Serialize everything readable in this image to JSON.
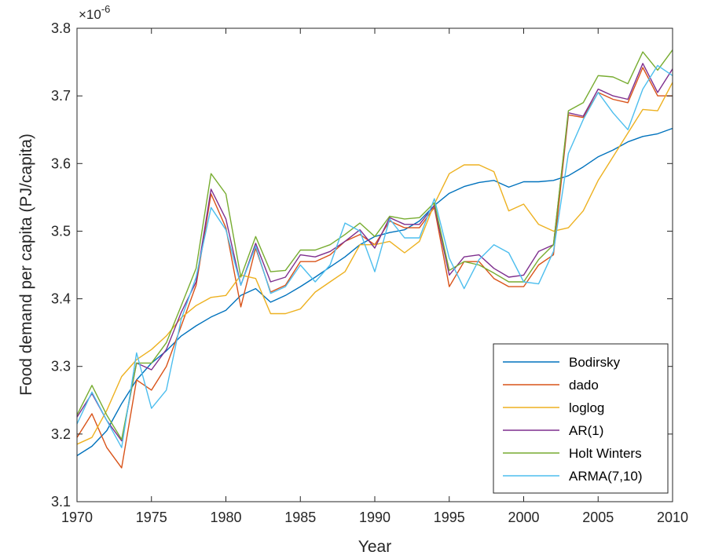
{
  "chart_data": {
    "type": "line",
    "title": "",
    "xlabel": "Year",
    "ylabel": "Food demand per capita (PJ/capita)",
    "y_multiplier": "×10",
    "y_multiplier_exp": "-6",
    "xlim": [
      1970,
      2010
    ],
    "ylim": [
      3.1,
      3.8
    ],
    "xticks": [
      "1970",
      "1975",
      "1980",
      "1985",
      "1990",
      "1995",
      "2000",
      "2005",
      "2010"
    ],
    "yticks": [
      "3.1",
      "3.2",
      "3.3",
      "3.4",
      "3.5",
      "3.6",
      "3.7",
      "3.8"
    ],
    "grid": false,
    "legend_position": "bottom-right",
    "x": [
      1970,
      1971,
      1972,
      1973,
      1974,
      1975,
      1976,
      1977,
      1978,
      1979,
      1980,
      1981,
      1982,
      1983,
      1984,
      1985,
      1986,
      1987,
      1988,
      1989,
      1990,
      1991,
      1992,
      1993,
      1994,
      1995,
      1996,
      1997,
      1998,
      1999,
      2000,
      2001,
      2002,
      2003,
      2004,
      2005,
      2006,
      2007,
      2008,
      2009,
      2010
    ],
    "series": [
      {
        "name": "Bodirsky",
        "color": "#0072BD",
        "values": [
          3.168,
          3.182,
          3.205,
          3.245,
          3.28,
          3.305,
          3.323,
          3.345,
          3.36,
          3.373,
          3.383,
          3.405,
          3.415,
          3.395,
          3.405,
          3.418,
          3.432,
          3.447,
          3.462,
          3.48,
          3.492,
          3.498,
          3.502,
          3.515,
          3.538,
          3.556,
          3.566,
          3.572,
          3.575,
          3.565,
          3.573,
          3.573,
          3.575,
          3.582,
          3.595,
          3.61,
          3.62,
          3.632,
          3.64,
          3.644,
          3.652
        ]
      },
      {
        "name": "dado",
        "color": "#D95319",
        "values": [
          3.195,
          3.23,
          3.18,
          3.15,
          3.28,
          3.265,
          3.3,
          3.36,
          3.42,
          3.555,
          3.505,
          3.388,
          3.475,
          3.41,
          3.42,
          3.455,
          3.455,
          3.465,
          3.485,
          3.495,
          3.48,
          3.515,
          3.505,
          3.505,
          3.535,
          3.418,
          3.455,
          3.455,
          3.43,
          3.418,
          3.418,
          3.45,
          3.465,
          3.672,
          3.668,
          3.705,
          3.695,
          3.69,
          3.742,
          3.7,
          3.7
        ]
      },
      {
        "name": "loglog",
        "color": "#EDB120",
        "values": [
          3.185,
          3.195,
          3.235,
          3.285,
          3.31,
          3.325,
          3.345,
          3.372,
          3.39,
          3.402,
          3.405,
          3.435,
          3.43,
          3.378,
          3.378,
          3.385,
          3.41,
          3.425,
          3.44,
          3.48,
          3.48,
          3.485,
          3.468,
          3.485,
          3.54,
          3.585,
          3.598,
          3.598,
          3.588,
          3.53,
          3.54,
          3.51,
          3.5,
          3.505,
          3.53,
          3.575,
          3.61,
          3.645,
          3.68,
          3.678,
          3.72
        ]
      },
      {
        "name": "AR(1)",
        "color": "#7E2F8E",
        "values": [
          3.225,
          3.26,
          3.22,
          3.19,
          3.305,
          3.295,
          3.325,
          3.38,
          3.425,
          3.562,
          3.518,
          3.42,
          3.482,
          3.425,
          3.432,
          3.465,
          3.462,
          3.47,
          3.485,
          3.502,
          3.475,
          3.52,
          3.51,
          3.51,
          3.538,
          3.435,
          3.462,
          3.465,
          3.445,
          3.432,
          3.435,
          3.47,
          3.48,
          3.675,
          3.67,
          3.71,
          3.7,
          3.695,
          3.748,
          3.705,
          3.74
        ]
      },
      {
        "name": "Holt Winters",
        "color": "#77AC30",
        "values": [
          3.228,
          3.272,
          3.228,
          3.192,
          3.305,
          3.305,
          3.335,
          3.39,
          3.445,
          3.585,
          3.555,
          3.432,
          3.492,
          3.44,
          3.442,
          3.472,
          3.472,
          3.48,
          3.495,
          3.512,
          3.492,
          3.522,
          3.518,
          3.52,
          3.542,
          3.442,
          3.455,
          3.45,
          3.438,
          3.425,
          3.425,
          3.458,
          3.48,
          3.678,
          3.69,
          3.73,
          3.728,
          3.718,
          3.765,
          3.738,
          3.768
        ]
      },
      {
        "name": "ARMA(7,10)",
        "color": "#4DBEEE",
        "values": [
          3.215,
          3.262,
          3.22,
          3.18,
          3.32,
          3.238,
          3.265,
          3.37,
          3.432,
          3.535,
          3.502,
          3.42,
          3.478,
          3.408,
          3.418,
          3.45,
          3.425,
          3.45,
          3.512,
          3.5,
          3.44,
          3.518,
          3.49,
          3.49,
          3.548,
          3.46,
          3.415,
          3.458,
          3.48,
          3.468,
          3.425,
          3.422,
          3.47,
          3.615,
          3.665,
          3.705,
          3.675,
          3.65,
          3.71,
          3.745,
          3.73
        ]
      }
    ]
  }
}
